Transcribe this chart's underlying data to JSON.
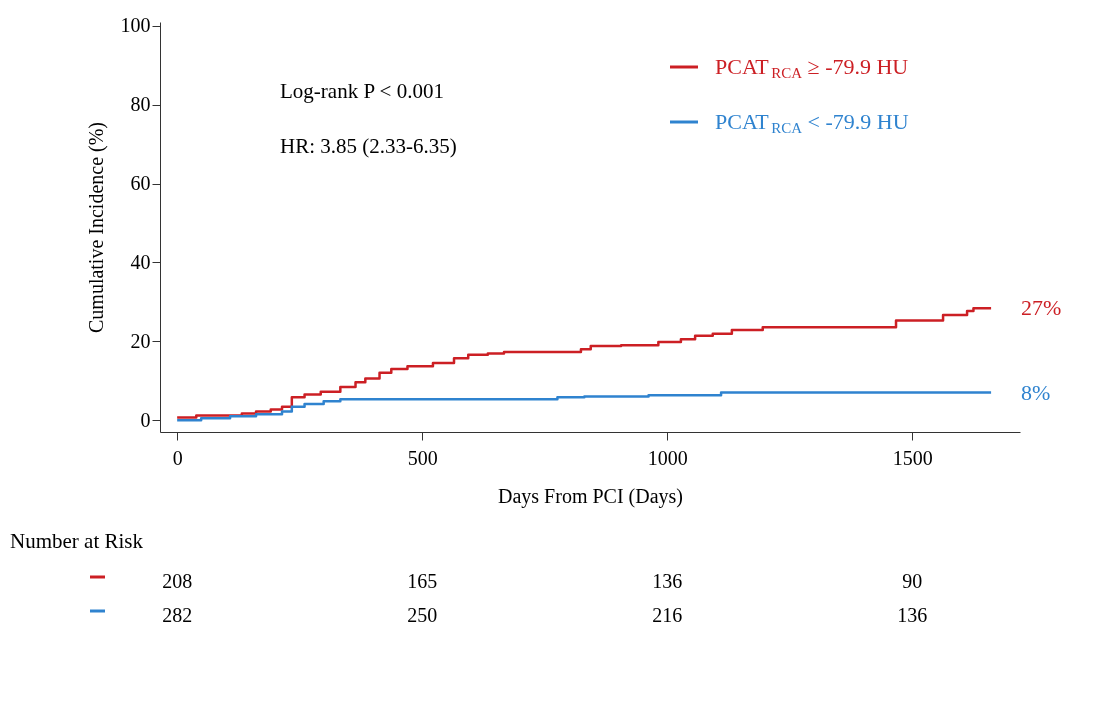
{
  "chart_data": {
    "type": "step",
    "xlabel": "Days From PCI (Days)",
    "ylabel": "Cumulative Incidence (%)",
    "xlim": [
      -35,
      1720
    ],
    "xticks": [
      0,
      500,
      1000,
      1500
    ],
    "ylim": [
      -3,
      101
    ],
    "yticks": [
      0,
      20,
      40,
      60,
      80,
      100
    ],
    "grid": false,
    "legend": "top right",
    "line_style": "solid",
    "marker": "none",
    "annotations": [
      "Log-rank P < 0.001",
      "HR: 3.85 (2.33-6.35)",
      {
        "text": "27%",
        "x": 1661,
        "y": 28.4
      },
      {
        "text": "8%",
        "x": 1661,
        "y": 7
      },
      "Number at Risk",
      "208",
      "165",
      "136",
      "90",
      "282",
      "250",
      "216",
      "136"
    ],
    "series": [
      {
        "name": "PCAT$_{RCA}$ ≥ -79.9 HU",
        "color": "#cc1f24",
        "x": [
          0,
          39,
          132,
          161,
          191,
          214,
          234,
          260,
          293,
          333,
          364,
          384,
          413,
          437,
          470,
          522,
          565,
          594,
          634,
          667,
          824,
          844,
          906,
          982,
          1028,
          1057,
          1093,
          1132,
          1195,
          1467,
          1563,
          1612,
          1625,
          1661
        ],
        "values": [
          0.7,
          1.2,
          1.7,
          2.2,
          2.7,
          3.4,
          5.8,
          6.5,
          7.2,
          8.4,
          9.6,
          10.6,
          12,
          13,
          13.7,
          14.5,
          15.7,
          16.6,
          16.9,
          17.3,
          18,
          18.8,
          19,
          19.8,
          20.5,
          21.4,
          21.9,
          22.9,
          23.6,
          25.3,
          26.7,
          27.7,
          28.4,
          28.4
        ]
      },
      {
        "name": "PCAT$_{RCA}$ < -79.9 HU",
        "color": "#2f83cf",
        "x": [
          0,
          49,
          108,
          161,
          214,
          234,
          260,
          299,
          333,
          776,
          831,
          962,
          1110,
          1661
        ],
        "values": [
          0,
          0.5,
          1,
          1.5,
          2.2,
          3.4,
          4.1,
          4.8,
          5.3,
          5.8,
          6,
          6.3,
          7,
          7
        ]
      }
    ]
  }
}
